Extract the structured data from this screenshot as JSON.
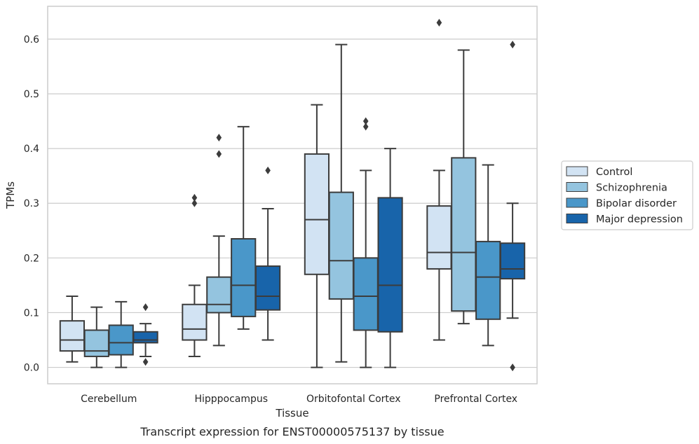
{
  "caption": "Transcript expression for ENST00000575137 by tissue",
  "colors": {
    "Control": "#d2e3f3",
    "Schizophrenia": "#94c4df",
    "Bipolar disorder": "#4a97c9",
    "Major depression": "#1864aa",
    "edge": "#3c3c3c",
    "grid": "#cccccc",
    "frame": "#cccccc"
  },
  "chart_data": {
    "type": "boxplot",
    "title": "",
    "xlabel": "Tissue",
    "ylabel": "TPMs",
    "ylim": [
      -0.03,
      0.66
    ],
    "yticks": [
      0.0,
      0.1,
      0.2,
      0.3,
      0.4,
      0.5,
      0.6
    ],
    "ytick_labels": [
      "0.0",
      "0.1",
      "0.2",
      "0.3",
      "0.4",
      "0.5",
      "0.6"
    ],
    "grid": true,
    "legend_position": "right",
    "categories": [
      "Cerebellum",
      "Hipppocampus",
      "Orbitofontal Cortex",
      "Prefrontal Cortex"
    ],
    "series": [
      {
        "name": "Control",
        "boxes": [
          {
            "whislo": 0.01,
            "q1": 0.03,
            "med": 0.05,
            "q3": 0.085,
            "whishi": 0.13,
            "fliers": []
          },
          {
            "whislo": 0.02,
            "q1": 0.05,
            "med": 0.07,
            "q3": 0.115,
            "whishi": 0.15,
            "fliers": [
              0.3,
              0.31
            ]
          },
          {
            "whislo": 0.0,
            "q1": 0.17,
            "med": 0.27,
            "q3": 0.39,
            "whishi": 0.48,
            "fliers": []
          },
          {
            "whislo": 0.05,
            "q1": 0.18,
            "med": 0.21,
            "q3": 0.295,
            "whishi": 0.36,
            "fliers": [
              0.63
            ]
          }
        ]
      },
      {
        "name": "Schizophrenia",
        "boxes": [
          {
            "whislo": 0.0,
            "q1": 0.02,
            "med": 0.03,
            "q3": 0.068,
            "whishi": 0.11,
            "fliers": []
          },
          {
            "whislo": 0.04,
            "q1": 0.1,
            "med": 0.115,
            "q3": 0.165,
            "whishi": 0.24,
            "fliers": [
              0.39,
              0.42
            ]
          },
          {
            "whislo": 0.01,
            "q1": 0.125,
            "med": 0.195,
            "q3": 0.32,
            "whishi": 0.59,
            "fliers": []
          },
          {
            "whislo": 0.08,
            "q1": 0.103,
            "med": 0.21,
            "q3": 0.383,
            "whishi": 0.58,
            "fliers": []
          }
        ]
      },
      {
        "name": "Bipolar disorder",
        "boxes": [
          {
            "whislo": 0.0,
            "q1": 0.023,
            "med": 0.045,
            "q3": 0.077,
            "whishi": 0.12,
            "fliers": []
          },
          {
            "whislo": 0.07,
            "q1": 0.093,
            "med": 0.15,
            "q3": 0.235,
            "whishi": 0.44,
            "fliers": []
          },
          {
            "whislo": 0.0,
            "q1": 0.068,
            "med": 0.13,
            "q3": 0.2,
            "whishi": 0.36,
            "fliers": [
              0.44,
              0.45
            ]
          },
          {
            "whislo": 0.04,
            "q1": 0.088,
            "med": 0.165,
            "q3": 0.23,
            "whishi": 0.37,
            "fliers": []
          }
        ]
      },
      {
        "name": "Major depression",
        "boxes": [
          {
            "whislo": 0.02,
            "q1": 0.045,
            "med": 0.05,
            "q3": 0.065,
            "whishi": 0.08,
            "fliers": [
              0.01,
              0.11
            ]
          },
          {
            "whislo": 0.05,
            "q1": 0.105,
            "med": 0.13,
            "q3": 0.185,
            "whishi": 0.29,
            "fliers": [
              0.36
            ]
          },
          {
            "whislo": 0.0,
            "q1": 0.065,
            "med": 0.15,
            "q3": 0.31,
            "whishi": 0.4,
            "fliers": []
          },
          {
            "whislo": 0.09,
            "q1": 0.162,
            "med": 0.18,
            "q3": 0.227,
            "whishi": 0.3,
            "fliers": [
              0.0,
              0.59
            ]
          }
        ]
      }
    ]
  }
}
